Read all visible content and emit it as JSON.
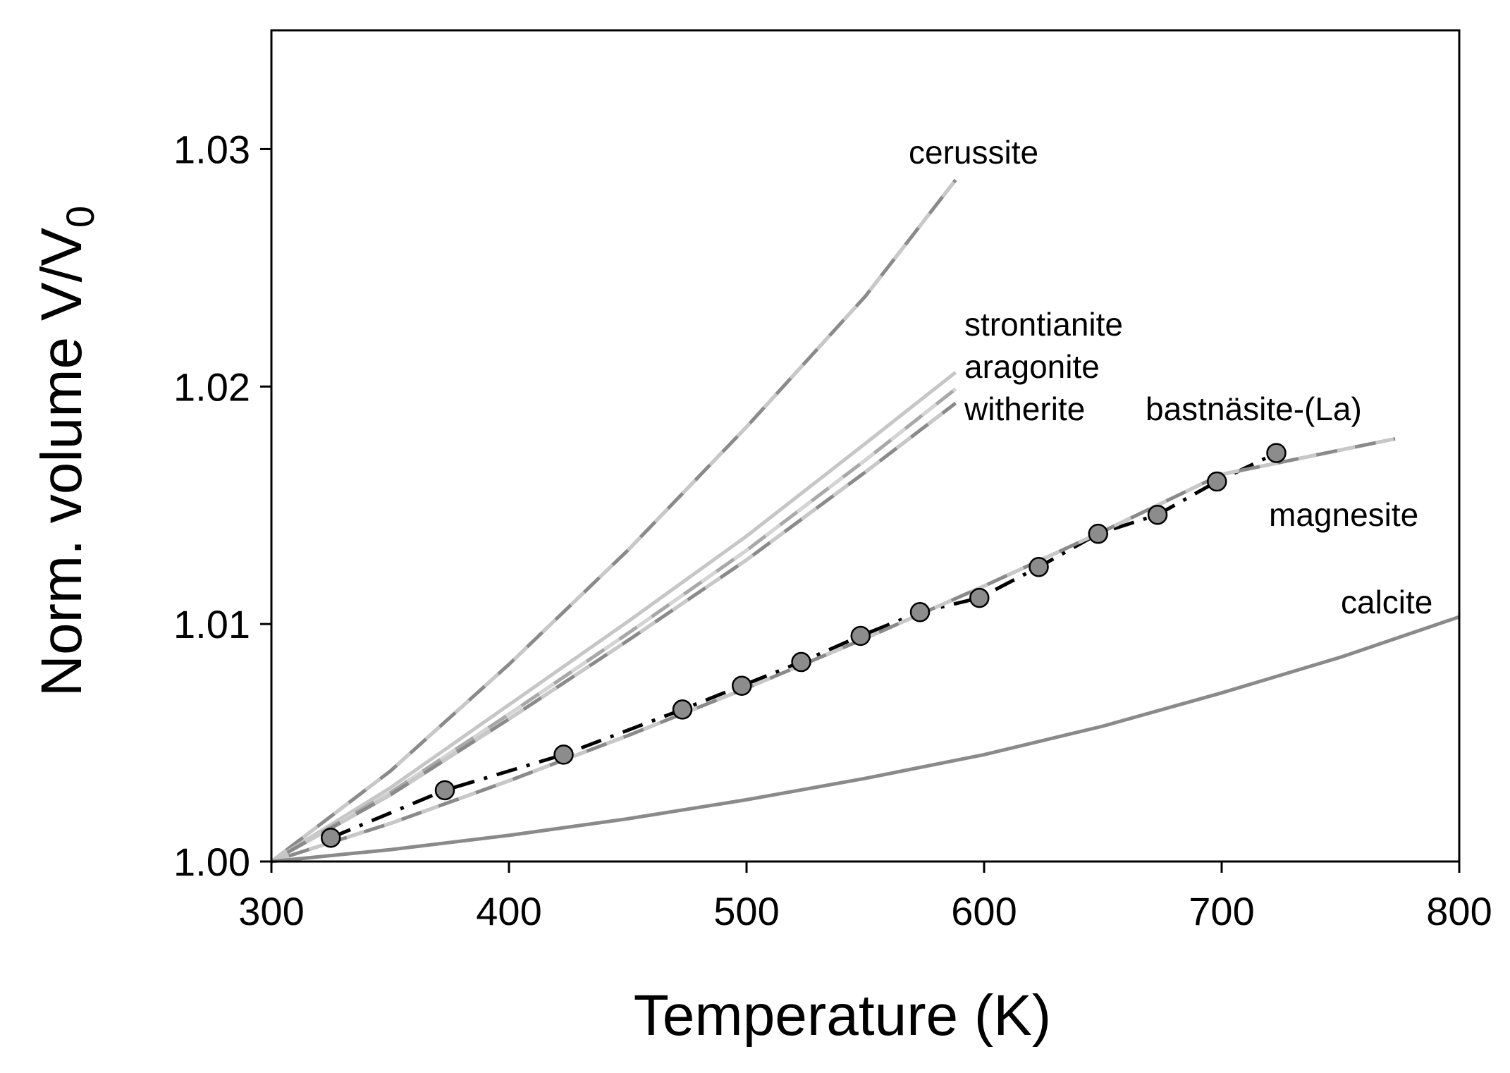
{
  "chart_data": {
    "type": "line",
    "title": "",
    "xlabel": "Temperature (K)",
    "ylabel_main": "Norm. volume V/V",
    "ylabel_sub": "0",
    "xlim": [
      300,
      800
    ],
    "ylim": [
      1.0,
      1.035
    ],
    "xticks": [
      300,
      400,
      500,
      600,
      700,
      800
    ],
    "xtick_labels": [
      "300",
      "400",
      "500",
      "600",
      "700",
      "800"
    ],
    "yticks": [
      1.0,
      1.01,
      1.02,
      1.03
    ],
    "ytick_labels": [
      "1.00",
      "1.01",
      "1.02",
      "1.03"
    ],
    "grid": false,
    "legend": "none",
    "series": [
      {
        "name": "cerussite",
        "style": "dashed",
        "color": "#8a8a8a",
        "dash_color": "#c8c8c8",
        "x": [
          300,
          350,
          400,
          450,
          500,
          550,
          588
        ],
        "y": [
          1.0,
          1.0038,
          1.0083,
          1.0131,
          1.0183,
          1.0238,
          1.0287
        ]
      },
      {
        "name": "strontianite",
        "style": "solid",
        "color": "#c6c6c6",
        "x": [
          300,
          350,
          400,
          450,
          500,
          550,
          588
        ],
        "y": [
          1.0,
          1.0031,
          1.0066,
          1.0101,
          1.0137,
          1.0176,
          1.0206
        ]
      },
      {
        "name": "aragonite",
        "style": "dashed",
        "color": "#a8a8a8",
        "dash_color": "#d4d4d4",
        "x": [
          300,
          350,
          400,
          450,
          500,
          550,
          588
        ],
        "y": [
          1.0,
          1.0029,
          1.0062,
          1.0096,
          1.0131,
          1.0169,
          1.0199
        ]
      },
      {
        "name": "witherite",
        "style": "dashed",
        "color": "#8a8a8a",
        "dash_color": "#c8c8c8",
        "x": [
          300,
          350,
          400,
          450,
          500,
          550,
          588
        ],
        "y": [
          1.0,
          1.0028,
          1.006,
          1.0093,
          1.0127,
          1.0164,
          1.0193
        ]
      },
      {
        "name": "bastnäsite-(La)",
        "style": "dashdot",
        "color": "#000000",
        "markers": true,
        "marker_color": "#8c8c8c",
        "x": [
          325,
          373,
          423,
          473,
          498,
          523,
          548,
          573,
          598,
          623,
          648,
          673,
          698,
          723
        ],
        "y": [
          1.001,
          1.003,
          1.0045,
          1.0064,
          1.0074,
          1.0084,
          1.0095,
          1.0105,
          1.0111,
          1.0124,
          1.0138,
          1.0146,
          1.016,
          1.0172
        ]
      },
      {
        "name": "magnesite",
        "style": "dashed",
        "color": "#8a8a8a",
        "dash_color": "#c8c8c8",
        "x": [
          300,
          350,
          400,
          450,
          500,
          550,
          600,
          650,
          700,
          773
        ],
        "y": [
          1.0,
          1.0016,
          1.0034,
          1.0053,
          1.0073,
          1.0094,
          1.0116,
          1.0139,
          1.0163,
          1.0178
        ]
      },
      {
        "name": "calcite",
        "style": "solid",
        "color": "#8a8a8a",
        "x": [
          300,
          350,
          400,
          450,
          500,
          550,
          600,
          650,
          700,
          750,
          800
        ],
        "y": [
          1.0,
          1.0005,
          1.0011,
          1.0018,
          1.0026,
          1.0035,
          1.0045,
          1.0057,
          1.0071,
          1.0086,
          1.0103
        ]
      }
    ],
    "annotations": [
      "cerussite",
      "strontianite",
      "aragonite",
      "witherite",
      "bastnäsite-(La)",
      "magnesite",
      "calcite"
    ]
  }
}
